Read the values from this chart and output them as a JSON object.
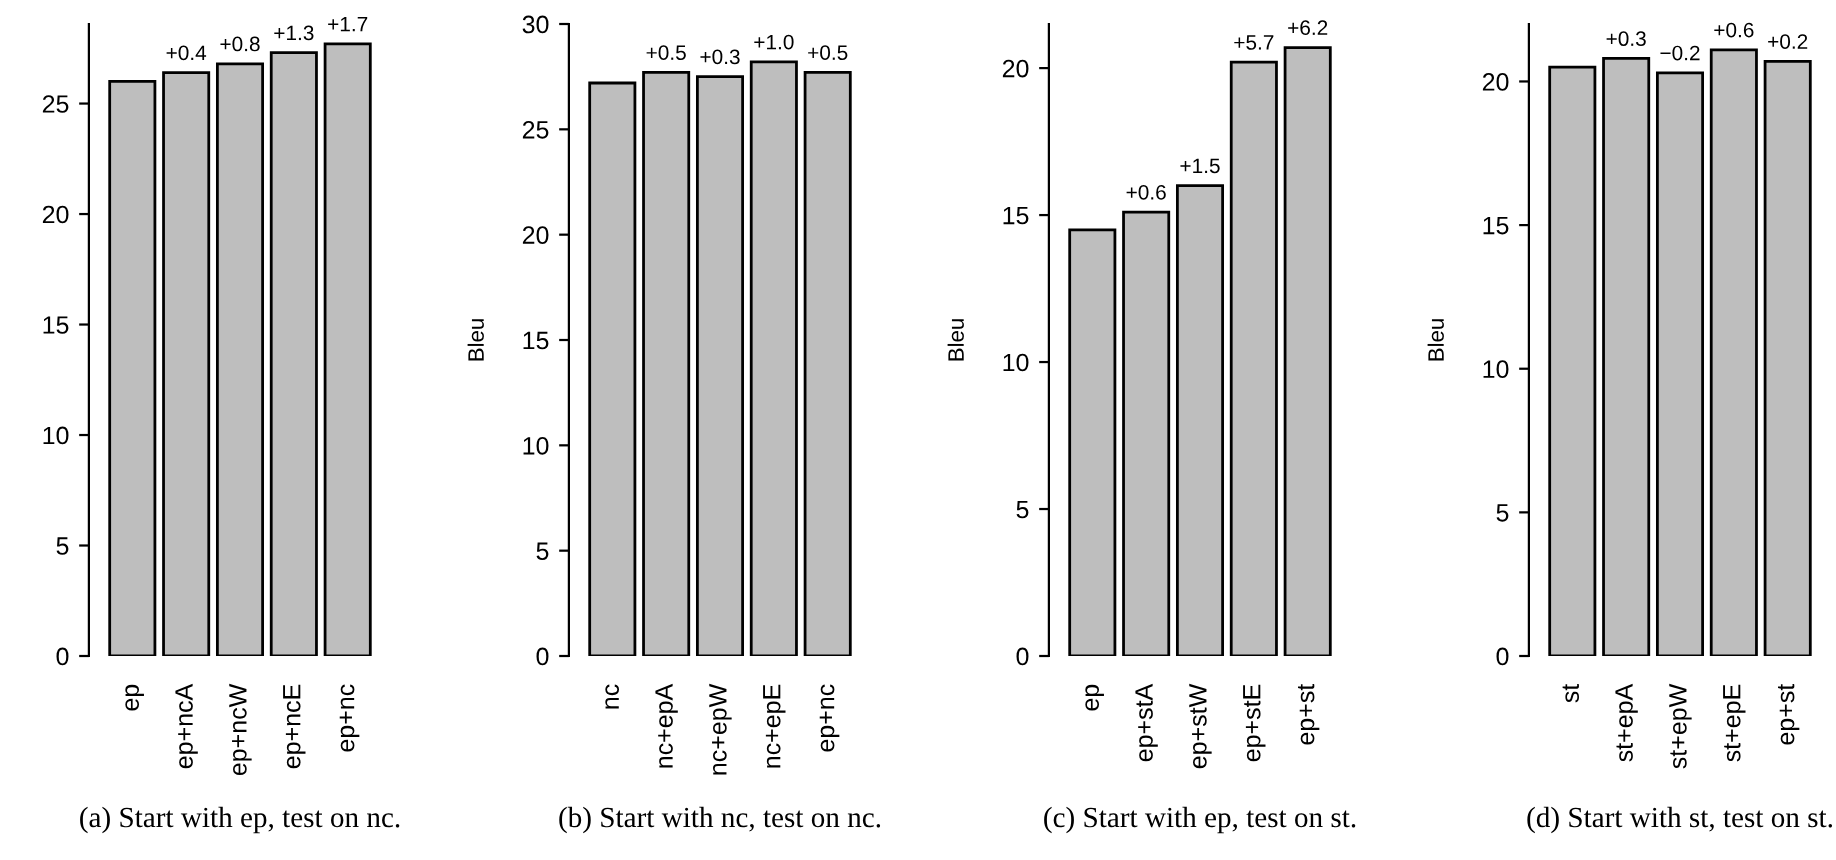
{
  "chart_data": [
    {
      "type": "bar",
      "title": "(a) Start with ep, test on nc.",
      "categories": [
        "ep",
        "ep+ncA",
        "ep+ncW",
        "ep+ncE",
        "ep+nc"
      ],
      "values": [
        26.0,
        26.4,
        26.8,
        27.3,
        27.7
      ],
      "annotations": [
        {
          "text": "+0.4",
          "x": "ep+ncA",
          "y": 26.4
        },
        {
          "text": "+0.8",
          "x": "ep+ncW",
          "y": 26.8
        },
        {
          "text": "+1.3",
          "x": "ep+ncE",
          "y": 27.3
        },
        {
          "text": "+1.7",
          "x": "ep+nc",
          "y": 27.7
        }
      ],
      "color": "#bebebe",
      "ylim": [
        0,
        28.6
      ],
      "yticks": [
        0,
        5,
        10,
        15,
        20,
        25
      ]
    },
    {
      "type": "bar",
      "title": "(b) Start with nc, test on nc.",
      "ylabel": "Bleu",
      "categories": [
        "nc",
        "nc+epA",
        "nc+epW",
        "nc+epE",
        "ep+nc"
      ],
      "values": [
        27.2,
        27.7,
        27.5,
        28.2,
        27.7
      ],
      "annotations": [
        {
          "text": "+0.5",
          "x": "nc+epA",
          "y": 27.7
        },
        {
          "text": "+0.3",
          "x": "nc+epW",
          "y": 27.5
        },
        {
          "text": "+1.0",
          "x": "nc+epE",
          "y": 28.2
        },
        {
          "text": "+0.5",
          "x": "ep+nc",
          "y": 27.7
        }
      ],
      "color": "#bebebe",
      "ylim": [
        0,
        30
      ],
      "yticks": [
        0,
        5,
        10,
        15,
        20,
        25,
        30
      ]
    },
    {
      "type": "bar",
      "title": "(c) Start with ep, test on st.",
      "ylabel": "Bleu",
      "categories": [
        "ep",
        "ep+stA",
        "ep+stW",
        "ep+stE",
        "ep+st"
      ],
      "values": [
        14.5,
        15.1,
        16.0,
        20.2,
        20.7
      ],
      "annotations": [
        {
          "text": "+0.6",
          "x": "ep+stA",
          "y": 15.1
        },
        {
          "text": "+1.5",
          "x": "ep+stW",
          "y": 16.0
        },
        {
          "text": "+5.7",
          "x": "ep+stE",
          "y": 20.2
        },
        {
          "text": "+6.2",
          "x": "ep+st",
          "y": 20.7
        }
      ],
      "color": "#bebebe",
      "ylim": [
        0,
        21.5
      ],
      "yticks": [
        0,
        5,
        10,
        15,
        20
      ]
    },
    {
      "type": "bar",
      "title": "(d) Start with st, test on st.",
      "ylabel": "Bleu",
      "categories": [
        "st",
        "st+epA",
        "st+epW",
        "st+epE",
        "ep+st"
      ],
      "values": [
        20.5,
        20.8,
        20.3,
        21.1,
        20.7
      ],
      "annotations": [
        {
          "text": "+0.3",
          "x": "st+epA",
          "y": 20.8
        },
        {
          "text": "−0.2",
          "x": "st+epW",
          "y": 20.3
        },
        {
          "text": "+0.6",
          "x": "st+epE",
          "y": 21.1
        },
        {
          "text": "+0.2",
          "x": "ep+st",
          "y": 20.7
        }
      ],
      "color": "#bebebe",
      "ylim": [
        0,
        22.0
      ],
      "yticks": [
        0,
        5,
        10,
        15,
        20
      ]
    }
  ]
}
